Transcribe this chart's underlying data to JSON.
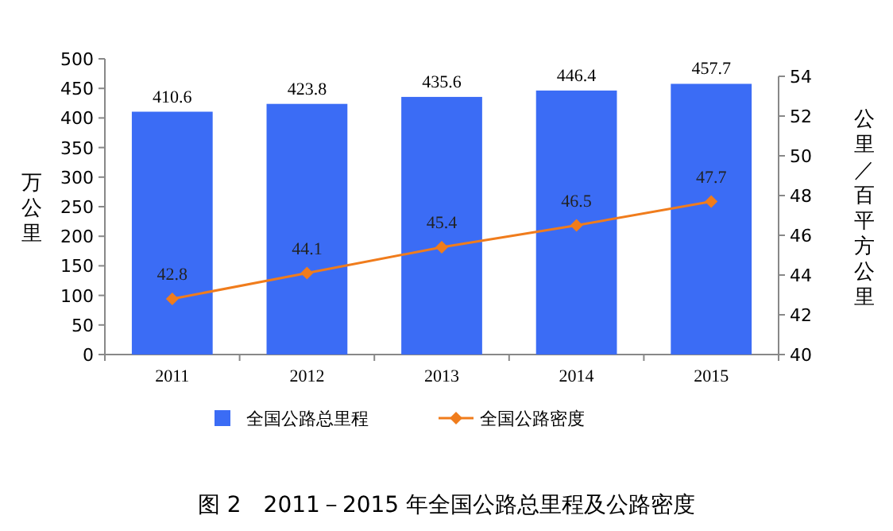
{
  "chart_data": {
    "type": "bar",
    "categories": [
      "2011",
      "2012",
      "2013",
      "2014",
      "2015"
    ],
    "series": [
      {
        "name": "全国公路总里程",
        "color": "#3b6cf5",
        "values": [
          410.6,
          423.8,
          435.6,
          446.4,
          457.7
        ]
      },
      {
        "name": "全国公路密度",
        "type": "line",
        "axis": "y2",
        "color": "#f07c1c",
        "marker": "diamond",
        "values": [
          42.8,
          44.1,
          45.4,
          46.5,
          47.7
        ]
      }
    ],
    "ylabel": "万公里",
    "y2label": "公里／百平方公里",
    "ylim": [
      0,
      500
    ],
    "yticks": [
      0,
      50,
      100,
      150,
      200,
      250,
      300,
      350,
      400,
      450,
      500
    ],
    "y2lim": [
      40,
      54
    ],
    "y2ticks": [
      40,
      42,
      44,
      46,
      48,
      50,
      52,
      54
    ],
    "data_labels": true,
    "legend": "bottom",
    "annotations": [
      "图 2　2011－2015 年全国公路总里程及公路密度"
    ]
  }
}
